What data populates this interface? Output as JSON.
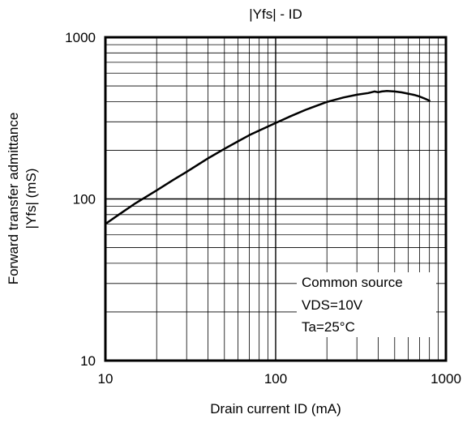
{
  "chart_data": {
    "type": "line",
    "title": "|Yfs| - ID",
    "xlabel": "Drain current  ID (mA)",
    "ylabel_lines": [
      "Forward transfer admittance",
      "|Yfs| (mS)"
    ],
    "xscale": "log",
    "yscale": "log",
    "xlim": [
      10,
      1000
    ],
    "ylim": [
      10,
      1000
    ],
    "grid": true,
    "xticks": [
      {
        "value": 10,
        "label": "10"
      },
      {
        "value": 100,
        "label": "100"
      },
      {
        "value": 1000,
        "label": "1000"
      }
    ],
    "yticks": [
      {
        "value": 10,
        "label": "10"
      },
      {
        "value": 100,
        "label": "100"
      },
      {
        "value": 1000,
        "label": "1000"
      }
    ],
    "annotation_lines": [
      "Common source",
      "VDS=10V",
      "Ta=25°C"
    ],
    "series": [
      {
        "line_color": "#000000",
        "x": [
          10,
          12,
          15,
          20,
          25,
          30,
          40,
          50,
          60,
          70,
          80,
          100,
          120,
          150,
          200,
          250,
          300,
          350,
          380,
          400,
          420,
          450,
          500,
          550,
          600,
          650,
          700,
          750,
          800
        ],
        "y": [
          70,
          80,
          94,
          113,
          131,
          147,
          178,
          204,
          227,
          248,
          265,
          295,
          322,
          356,
          398,
          424,
          441,
          452,
          462,
          457,
          462,
          465,
          462,
          456,
          448,
          440,
          430,
          418,
          405
        ]
      }
    ]
  }
}
